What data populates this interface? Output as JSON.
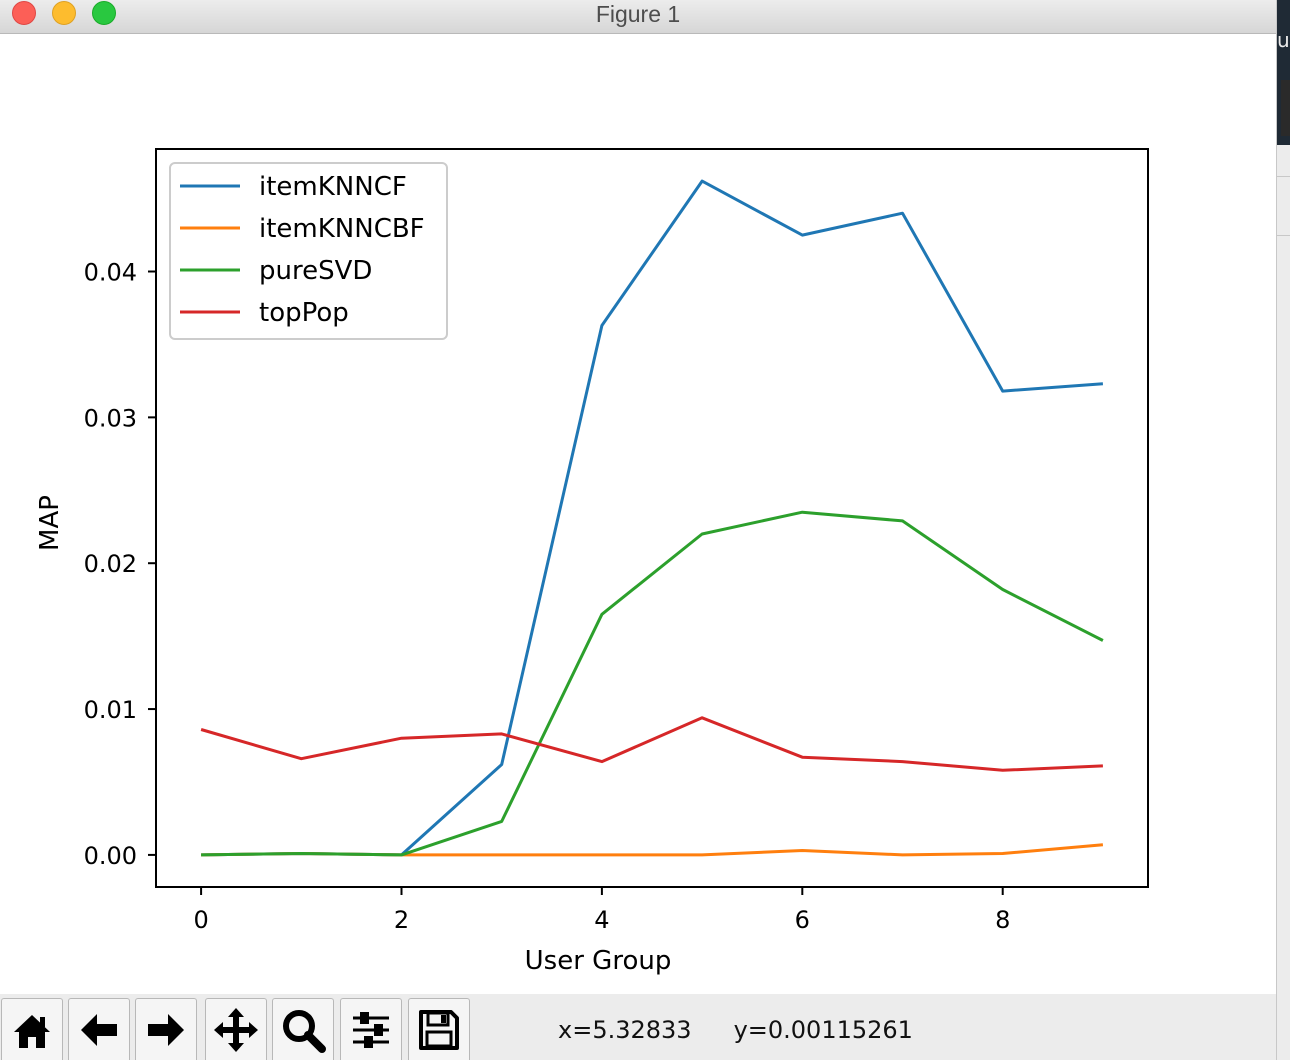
{
  "window": {
    "title": "Figure 1"
  },
  "background_window": {
    "label": "ur"
  },
  "chart_data": {
    "type": "line",
    "title": "",
    "xlabel": "User Group",
    "ylabel": "MAP",
    "x": [
      0,
      1,
      2,
      3,
      4,
      5,
      6,
      7,
      8,
      9
    ],
    "xlim": [
      -0.45,
      9.45
    ],
    "ylim": [
      -0.0022,
      0.0484
    ],
    "xticks": [
      0,
      2,
      4,
      6,
      8
    ],
    "xtick_labels": [
      "0",
      "2",
      "4",
      "6",
      "8"
    ],
    "yticks": [
      0.0,
      0.01,
      0.02,
      0.03,
      0.04
    ],
    "ytick_labels": [
      "0.00",
      "0.01",
      "0.02",
      "0.03",
      "0.04"
    ],
    "grid": false,
    "legend_position": "upper-left",
    "series": [
      {
        "name": "itemKNNCF",
        "color": "#1f77b4",
        "values": [
          0.0,
          0.0001,
          0.0,
          0.0062,
          0.0363,
          0.0462,
          0.0425,
          0.044,
          0.0318,
          0.0323
        ]
      },
      {
        "name": "itemKNNCBF",
        "color": "#ff7f0e",
        "values": [
          0.0,
          0.0001,
          0.0,
          0.0,
          0.0,
          0.0,
          0.0003,
          0.0,
          0.0001,
          0.0007
        ]
      },
      {
        "name": "pureSVD",
        "color": "#2ca02c",
        "values": [
          0.0,
          0.0001,
          0.0,
          0.0023,
          0.0165,
          0.022,
          0.0235,
          0.0229,
          0.0182,
          0.0147
        ]
      },
      {
        "name": "topPop",
        "color": "#d62728",
        "values": [
          0.0086,
          0.0066,
          0.008,
          0.0083,
          0.0064,
          0.0094,
          0.0067,
          0.0064,
          0.0058,
          0.0061
        ]
      }
    ]
  },
  "toolbar": {
    "tools": [
      {
        "name": "home",
        "icon": "home-icon"
      },
      {
        "name": "back",
        "icon": "arrow-left-icon"
      },
      {
        "name": "forward",
        "icon": "arrow-right-icon"
      },
      {
        "name": "pan",
        "icon": "move-icon"
      },
      {
        "name": "zoom",
        "icon": "magnifier-icon"
      },
      {
        "name": "configure-subplots",
        "icon": "sliders-icon"
      },
      {
        "name": "save",
        "icon": "floppy-disk-icon"
      }
    ],
    "coords_x": "x=5.32833",
    "coords_y": "y=0.00115261"
  }
}
